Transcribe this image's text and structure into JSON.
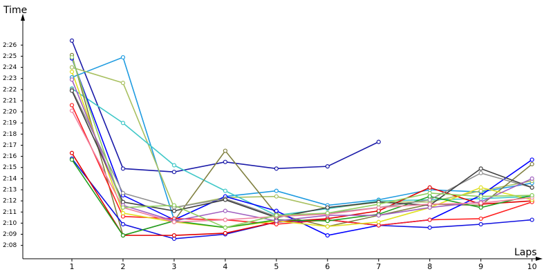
{
  "chart_data": {
    "type": "line",
    "y_label": "Time",
    "x_label": "Laps",
    "x": [
      1,
      2,
      3,
      4,
      5,
      6,
      7,
      8,
      9,
      10
    ],
    "xlim": [
      0.04,
      10.14
    ],
    "xticks": [
      1,
      2,
      3,
      4,
      5,
      6,
      7,
      8,
      9,
      10
    ],
    "ylim": [
      126.8,
      148.5
    ],
    "yticks": [
      {
        "value": 128,
        "label": "2:08"
      },
      {
        "value": 129,
        "label": "2:09"
      },
      {
        "value": 130,
        "label": "2:10"
      },
      {
        "value": 131,
        "label": "2:11"
      },
      {
        "value": 132,
        "label": "2:12"
      },
      {
        "value": 133,
        "label": "2:13"
      },
      {
        "value": 134,
        "label": "2:14"
      },
      {
        "value": 135,
        "label": "2:15"
      },
      {
        "value": 136,
        "label": "2:16"
      },
      {
        "value": 137,
        "label": "2:17"
      },
      {
        "value": 138,
        "label": "2:18"
      },
      {
        "value": 139,
        "label": "2:19"
      },
      {
        "value": 140,
        "label": "2:20"
      },
      {
        "value": 141,
        "label": "2:21"
      },
      {
        "value": 142,
        "label": "2:22"
      },
      {
        "value": 143,
        "label": "2:23"
      },
      {
        "value": 144,
        "label": "2:24"
      },
      {
        "value": 145,
        "label": "2:25"
      },
      {
        "value": 146,
        "label": "2:26"
      }
    ],
    "series": [
      {
        "color": "#1a1aa8",
        "values": [
          146.4,
          134.9,
          134.6,
          135.5,
          134.9,
          135.1,
          137.3,
          null,
          null,
          null
        ]
      },
      {
        "color": "#1e9be0",
        "values": [
          143.1,
          144.9,
          130.3,
          132.4,
          132.9,
          131.6,
          132.1,
          133.0,
          132.8,
          133.6
        ]
      },
      {
        "color": "#a8c060",
        "values": [
          144.0,
          142.6,
          131.4,
          132.3,
          132.4,
          131.3,
          131.9,
          131.9,
          132.9,
          133.8
        ]
      },
      {
        "color": "#40c8c8",
        "values": [
          142.1,
          139.0,
          135.2,
          132.9,
          130.7,
          131.3,
          132.0,
          132.1,
          132.2,
          132.4
        ]
      },
      {
        "color": "#808040",
        "values": [
          145.1,
          128.9,
          130.2,
          136.5,
          130.8,
          129.7,
          130.7,
          131.7,
          131.6,
          135.3
        ]
      },
      {
        "color": "#0000ff",
        "values": [
          144.8,
          132.5,
          130.3,
          132.4,
          131.1,
          128.9,
          129.8,
          130.3,
          132.5,
          135.7
        ]
      },
      {
        "color": "#1010e0",
        "values": [
          135.8,
          129.9,
          128.6,
          129.0,
          130.1,
          130.3,
          129.8,
          129.6,
          129.9,
          130.3
        ]
      },
      {
        "color": "#e00000",
        "values": [
          136.3,
          128.9,
          128.9,
          129.1,
          130.1,
          130.4,
          131.1,
          133.2,
          131.7,
          132.0
        ]
      },
      {
        "color": "#ff2020",
        "values": [
          140.6,
          130.6,
          130.4,
          130.3,
          129.9,
          130.3,
          129.8,
          130.3,
          130.4,
          131.9
        ]
      },
      {
        "color": "#e0e020",
        "values": [
          143.6,
          130.9,
          130.1,
          129.6,
          130.2,
          129.7,
          130.1,
          131.4,
          133.2,
          132.1
        ]
      },
      {
        "color": "#20a020",
        "values": [
          135.7,
          128.9,
          130.2,
          129.6,
          130.3,
          130.2,
          130.8,
          132.4,
          131.4,
          132.5
        ]
      },
      {
        "color": "#909090",
        "values": [
          142.0,
          132.7,
          131.4,
          132.2,
          130.6,
          130.9,
          131.4,
          132.1,
          134.5,
          133.2
        ]
      },
      {
        "color": "#404040",
        "values": [
          141.9,
          131.9,
          131.1,
          132.1,
          130.5,
          131.4,
          131.9,
          131.6,
          134.9,
          133.2
        ]
      },
      {
        "color": "#a060c0",
        "values": [
          142.9,
          131.6,
          130.2,
          131.1,
          130.2,
          130.7,
          130.7,
          131.4,
          131.9,
          134.0
        ]
      },
      {
        "color": "#f080a0",
        "values": [
          140.1,
          131.4,
          130.1,
          130.3,
          130.6,
          130.8,
          131.4,
          131.7,
          131.8,
          132.3
        ]
      },
      {
        "color": "#90d060",
        "values": [
          144.9,
          131.4,
          131.6,
          129.6,
          130.7,
          130.9,
          131.7,
          132.7,
          132.4,
          132.5
        ]
      }
    ]
  }
}
